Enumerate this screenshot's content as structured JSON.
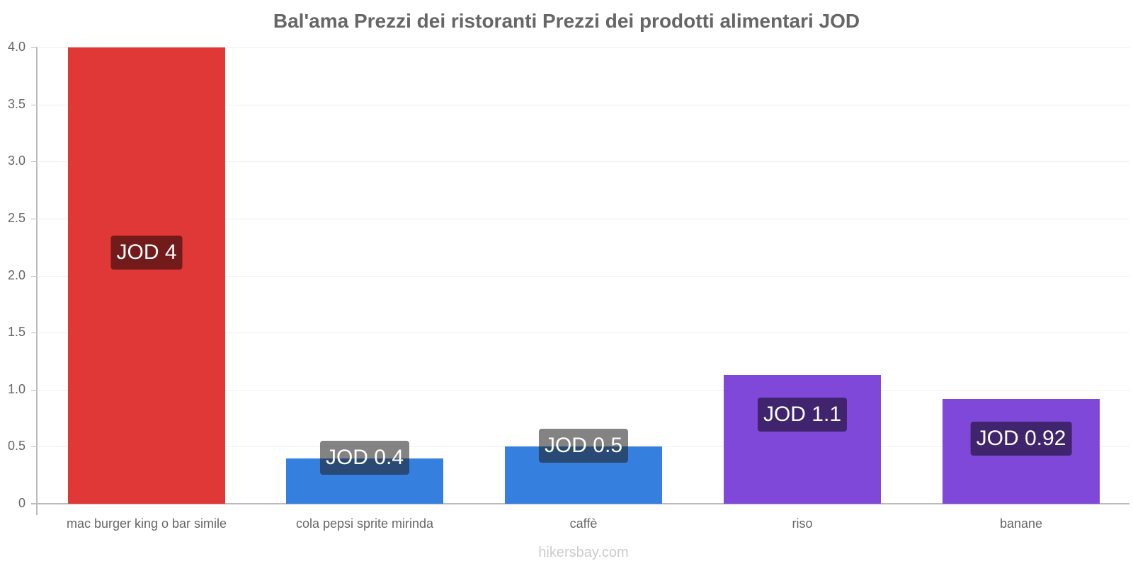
{
  "title": "Bal'ama Prezzi dei ristoranti Prezzi dei prodotti alimentari JOD",
  "watermark": "hikersbay.com",
  "y_ticks": [
    "4.0",
    "3.5",
    "3.0",
    "2.5",
    "2.0",
    "1.5",
    "1.0",
    "0.5",
    "0"
  ],
  "bars": [
    {
      "category": "mac burger king o bar simile",
      "value": 4.0,
      "label": "JOD 4",
      "color": "#e03737",
      "label_bg": "#731b1b"
    },
    {
      "category": "cola pepsi sprite mirinda",
      "value": 0.4,
      "label": "JOD 0.4",
      "color": "#3580de",
      "label_bg": "rgba(30,30,30,0.55)"
    },
    {
      "category": "caffè",
      "value": 0.5,
      "label": "JOD 0.5",
      "color": "#3580de",
      "label_bg": "rgba(30,30,30,0.55)"
    },
    {
      "category": "riso",
      "value": 1.13,
      "label": "JOD 1.1",
      "color": "#8048d8",
      "label_bg": "#40246e"
    },
    {
      "category": "banane",
      "value": 0.92,
      "label": "JOD 0.92",
      "color": "#8048d8",
      "label_bg": "#40246e"
    }
  ],
  "chart_data": {
    "type": "bar",
    "title": "Bal'ama Prezzi dei ristoranti Prezzi dei prodotti alimentari JOD",
    "categories": [
      "mac burger king o bar simile",
      "cola pepsi sprite mirinda",
      "caffè",
      "riso",
      "banane"
    ],
    "values": [
      4.0,
      0.4,
      0.5,
      1.13,
      0.92
    ],
    "data_labels": [
      "JOD 4",
      "JOD 0.4",
      "JOD 0.5",
      "JOD 1.1",
      "JOD 0.92"
    ],
    "colors": [
      "#e03737",
      "#3580de",
      "#3580de",
      "#8048d8",
      "#8048d8"
    ],
    "xlabel": "",
    "ylabel": "",
    "ylim": [
      0,
      4.0
    ],
    "y_ticks": [
      0,
      0.5,
      1.0,
      1.5,
      2.0,
      2.5,
      3.0,
      3.5,
      4.0
    ],
    "grid": true,
    "legend": "none"
  }
}
